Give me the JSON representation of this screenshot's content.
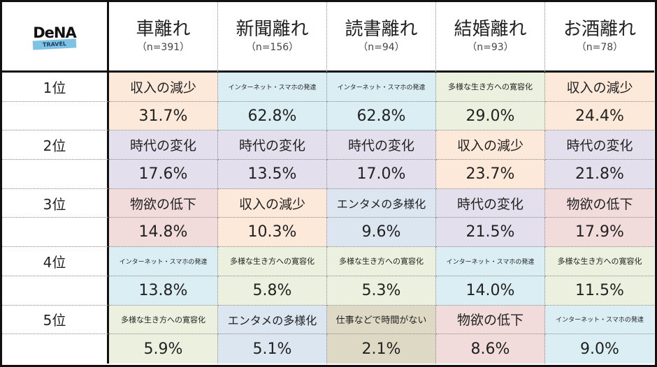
{
  "logo": {
    "brand": "DeNA",
    "sub": "TRAVEL"
  },
  "colors": {
    "income": "#fde9d9",
    "internet": "#daeef3",
    "diversity": "#ebf1de",
    "era": "#e4dfec",
    "desire": "#f2dcdb",
    "entame": "#dce6f1",
    "work": "#ddd9c4"
  },
  "columns": [
    {
      "title": "車離れ",
      "n": "（n=391）"
    },
    {
      "title": "新聞離れ",
      "n": "（n=156）"
    },
    {
      "title": "読書離れ",
      "n": "（n=94）"
    },
    {
      "title": "結婚離れ",
      "n": "（n=93）"
    },
    {
      "title": "お酒離れ",
      "n": "（n=78）"
    }
  ],
  "ranks": [
    {
      "label": "1位",
      "cells": [
        {
          "reason": "収入の減少",
          "value": "31.7%",
          "cat": "income"
        },
        {
          "reason": "インターネット・スマホの発達",
          "value": "62.8%",
          "cat": "internet"
        },
        {
          "reason": "インターネット・スマホの発達",
          "value": "62.8%",
          "cat": "internet"
        },
        {
          "reason": "多様な生き方への寛容化",
          "value": "29.0%",
          "cat": "diversity"
        },
        {
          "reason": "収入の減少",
          "value": "24.4%",
          "cat": "income"
        }
      ]
    },
    {
      "label": "2位",
      "cells": [
        {
          "reason": "時代の変化",
          "value": "17.6%",
          "cat": "era"
        },
        {
          "reason": "時代の変化",
          "value": "13.5%",
          "cat": "era"
        },
        {
          "reason": "時代の変化",
          "value": "17.0%",
          "cat": "era"
        },
        {
          "reason": "収入の減少",
          "value": "23.7%",
          "cat": "income"
        },
        {
          "reason": "時代の変化",
          "value": "21.8%",
          "cat": "era"
        }
      ]
    },
    {
      "label": "3位",
      "cells": [
        {
          "reason": "物欲の低下",
          "value": "14.8%",
          "cat": "desire"
        },
        {
          "reason": "収入の減少",
          "value": "10.3%",
          "cat": "income"
        },
        {
          "reason": "エンタメの多様化",
          "value": "9.6%",
          "cat": "entame"
        },
        {
          "reason": "時代の変化",
          "value": "21.5%",
          "cat": "era"
        },
        {
          "reason": "物欲の低下",
          "value": "17.9%",
          "cat": "desire"
        }
      ]
    },
    {
      "label": "4位",
      "cells": [
        {
          "reason": "インターネット・スマホの発達",
          "value": "13.8%",
          "cat": "internet"
        },
        {
          "reason": "多様な生き方への寛容化",
          "value": "5.8%",
          "cat": "diversity"
        },
        {
          "reason": "多様な生き方への寛容化",
          "value": "5.3%",
          "cat": "diversity"
        },
        {
          "reason": "インターネット・スマホの発達",
          "value": "14.0%",
          "cat": "internet"
        },
        {
          "reason": "多様な生き方への寛容化",
          "value": "11.5%",
          "cat": "diversity"
        }
      ]
    },
    {
      "label": "5位",
      "cells": [
        {
          "reason": "多様な生き方への寛容化",
          "value": "5.9%",
          "cat": "diversity"
        },
        {
          "reason": "エンタメの多様化",
          "value": "5.1%",
          "cat": "entame"
        },
        {
          "reason": "仕事などで時間がない",
          "value": "2.1%",
          "cat": "work"
        },
        {
          "reason": "物欲の低下",
          "value": "8.6%",
          "cat": "desire"
        },
        {
          "reason": "インターネット・スマホの発達",
          "value": "9.0%",
          "cat": "internet"
        }
      ]
    }
  ]
}
